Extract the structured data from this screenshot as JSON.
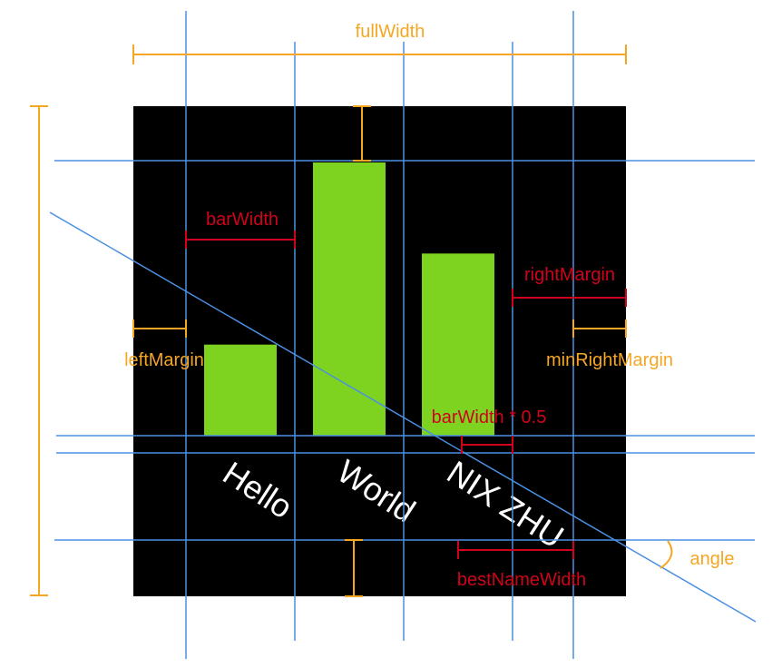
{
  "colors": {
    "canvas": "#000000",
    "bar": "#7ed321",
    "guide": "#4a90e2",
    "dimension_orange": "#f5a623",
    "dimension_red": "#d0021b",
    "category_text": "#ffffff"
  },
  "chart_data": {
    "type": "bar",
    "categories": [
      "Hello",
      "World",
      "NIX ZHU"
    ],
    "values": [
      1,
      3,
      2
    ],
    "category_label_rotation": "rotated clockwise by angle",
    "grid": false
  },
  "annotations": {
    "full_width": "fullWidth",
    "bar_width": "barWidth",
    "right_margin": "rightMargin",
    "left_margin": "leftMargin",
    "min_right_margin": "minRightMargin",
    "bar_width_half": "barWidth * 0.5",
    "best_name_width": "bestNameWidth",
    "angle": "angle"
  },
  "icons": [
    "dimension-bracket-icon",
    "angle-arc-icon"
  ]
}
